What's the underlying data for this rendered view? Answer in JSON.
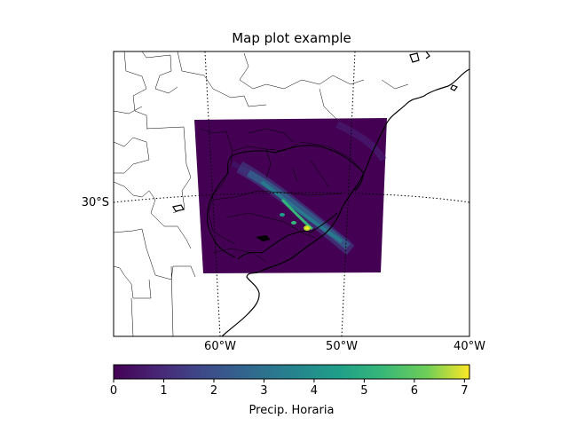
{
  "title": "Map plot example",
  "lat_labels": [
    {
      "text": "30°S",
      "lat": -30
    }
  ],
  "lon_labels": [
    {
      "text": "60°W",
      "lon": -60
    },
    {
      "text": "50°W",
      "lon": -50
    },
    {
      "text": "40°W",
      "lon": -40
    }
  ],
  "colorbar": {
    "label": "Precip. Horaria",
    "ticks": [
      "0",
      "1",
      "2",
      "3",
      "4",
      "5",
      "6",
      "7"
    ],
    "min": 0,
    "max": 7.1,
    "colormap": "viridis"
  },
  "data_field": {
    "description": "hourly precipitation over southern Brazil / Uruguay",
    "max_value": 7.1,
    "core_lon": -52.5,
    "core_lat": -31
  },
  "colors": {
    "background_field": "#440154",
    "coastline": "#000000",
    "border": "#000000"
  }
}
